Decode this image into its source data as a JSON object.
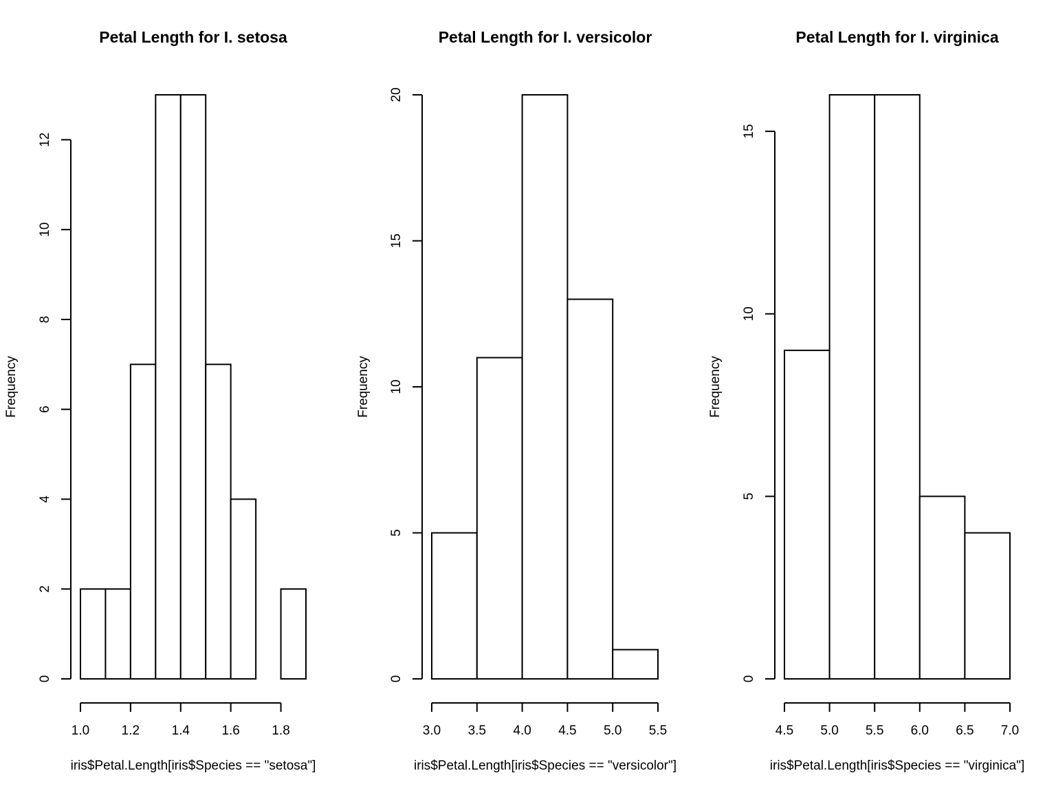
{
  "chart_data": [
    {
      "type": "bar",
      "title": "Petal Length for I. setosa",
      "xlabel": "iris$Petal.Length[iris$Species == \"setosa\"]",
      "ylabel": "Frequency",
      "bins": [
        [
          1.0,
          1.1
        ],
        [
          1.1,
          1.2
        ],
        [
          1.2,
          1.3
        ],
        [
          1.3,
          1.4
        ],
        [
          1.4,
          1.5
        ],
        [
          1.5,
          1.6
        ],
        [
          1.6,
          1.7
        ],
        [
          1.7,
          1.8
        ],
        [
          1.8,
          1.9
        ]
      ],
      "values": [
        2,
        2,
        7,
        13,
        13,
        7,
        4,
        0,
        2
      ],
      "xlim": [
        1.0,
        1.9
      ],
      "xticks": [
        "1.0",
        "1.2",
        "1.4",
        "1.6",
        "1.8"
      ],
      "ylim": [
        0,
        13
      ],
      "yticks": [
        "0",
        "2",
        "4",
        "6",
        "8",
        "10",
        "12"
      ],
      "grid": false
    },
    {
      "type": "bar",
      "title": "Petal Length for I. versicolor",
      "xlabel": "iris$Petal.Length[iris$Species == \"versicolor\"]",
      "ylabel": "Frequency",
      "bins": [
        [
          3.0,
          3.5
        ],
        [
          3.5,
          4.0
        ],
        [
          4.0,
          4.5
        ],
        [
          4.5,
          5.0
        ],
        [
          5.0,
          5.5
        ]
      ],
      "values": [
        5,
        11,
        20,
        13,
        1
      ],
      "xlim": [
        3.0,
        5.5
      ],
      "xticks": [
        "3.0",
        "3.5",
        "4.0",
        "4.5",
        "5.0",
        "5.5"
      ],
      "ylim": [
        0,
        20
      ],
      "yticks": [
        "0",
        "5",
        "10",
        "15",
        "20"
      ],
      "grid": false
    },
    {
      "type": "bar",
      "title": "Petal Length for I. virginica",
      "xlabel": "iris$Petal.Length[iris$Species == \"virginica\"]",
      "ylabel": "Frequency",
      "bins": [
        [
          4.5,
          5.0
        ],
        [
          5.0,
          5.5
        ],
        [
          5.5,
          6.0
        ],
        [
          6.0,
          6.5
        ],
        [
          6.5,
          7.0
        ]
      ],
      "values": [
        9,
        16,
        16,
        5,
        4
      ],
      "xlim": [
        4.5,
        7.0
      ],
      "xticks": [
        "4.5",
        "5.0",
        "5.5",
        "6.0",
        "6.5",
        "7.0"
      ],
      "ylim": [
        0,
        16
      ],
      "yticks": [
        "0",
        "5",
        "10",
        "15"
      ],
      "grid": false
    }
  ]
}
